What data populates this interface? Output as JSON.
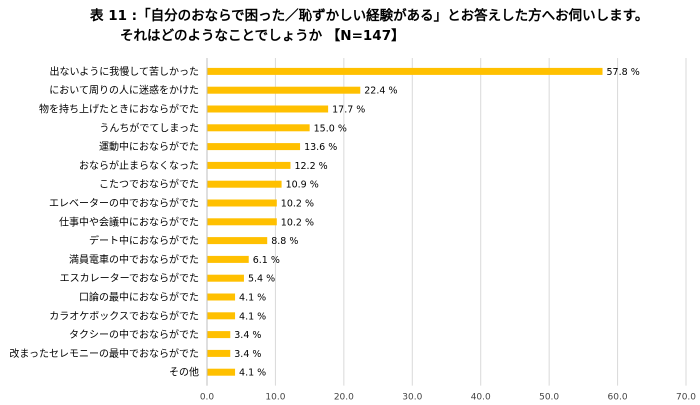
{
  "title_line1": "表 11 :「自分のおならで困った／恥ずかしい経験がある」とお答えした方へお伺いします。",
  "title_line2": "それはどのようなことでしょうか 【N=147】",
  "chart_data": {
    "type": "bar",
    "orientation": "horizontal",
    "categories": [
      "出ないように我慢して苦しかった",
      "において周りの人に迷惑をかけた",
      "物を持ち上げたときにおならがでた",
      "うんちがでてしまった",
      "運動中におならがでた",
      "おならが止まらなくなった",
      "こたつでおならがでた",
      "エレベーターの中でおならがでた",
      "仕事中や会議中におならがでた",
      "デート中におならがでた",
      "満員電車の中でおならがでた",
      "エスカレーターでおならがでた",
      "口論の最中におならがでた",
      "カラオケボックスでおならがでた",
      "タクシーの中でおならがでた",
      "改まったセレモニーの最中でおならがでた",
      "その他"
    ],
    "values": [
      57.8,
      22.4,
      17.7,
      15.0,
      13.6,
      12.2,
      10.9,
      10.2,
      10.2,
      8.8,
      6.1,
      5.4,
      4.1,
      4.1,
      3.4,
      3.4,
      4.1
    ],
    "value_labels": [
      "57.8 %",
      "22.4 %",
      "17.7 %",
      "15.0 %",
      "13.6 %",
      "12.2 %",
      "10.9 %",
      "10.2 %",
      "10.2 %",
      "8.8 %",
      "6.1 %",
      "5.4 %",
      "4.1 %",
      "4.1 %",
      "3.4 %",
      "3.4 %",
      "4.1 %"
    ],
    "xlim": [
      0,
      70
    ],
    "x_ticks": [
      "0.0",
      "10.0",
      "20.0",
      "30.0",
      "40.0",
      "50.0",
      "60.0",
      "70.0"
    ],
    "bar_color": "#FFC000",
    "grid": true
  }
}
